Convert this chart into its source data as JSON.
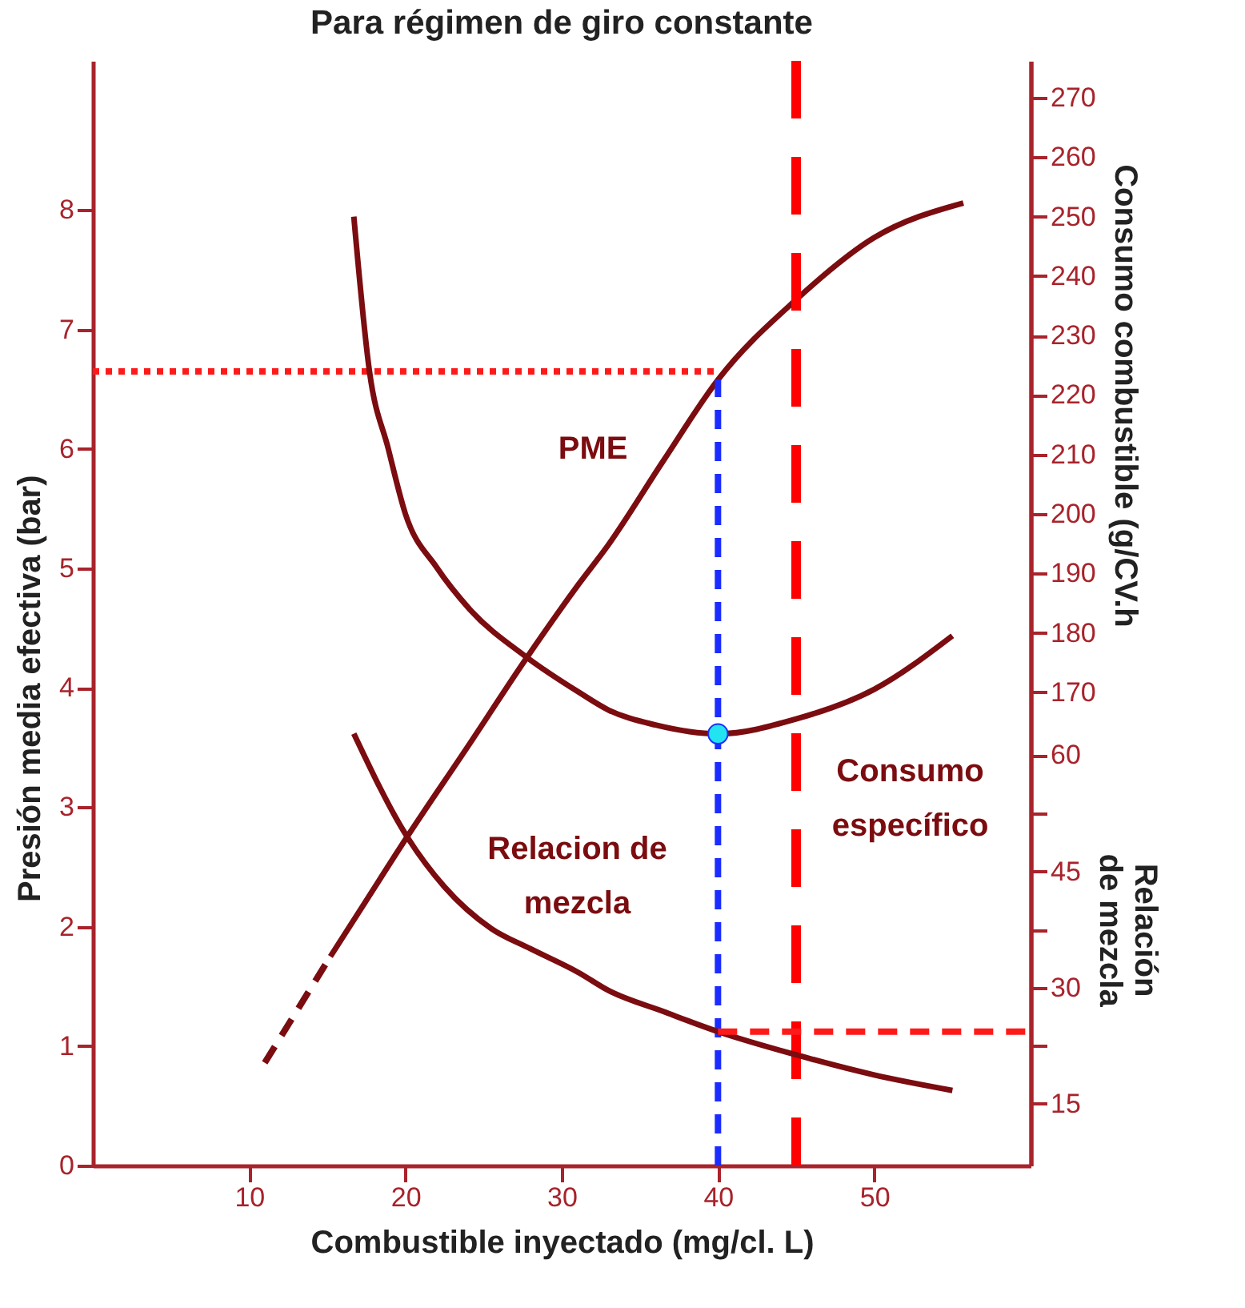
{
  "chart_data": {
    "type": "line",
    "title": "Para régimen de giro constante",
    "xlabel": "Combustible inyectado (mg/cl. L)",
    "ylabel": "Presión media efectiva (bar)",
    "y2label": "Consumo combustible (g/CV.h",
    "y3label": "Relación de mezcla",
    "xlim": [
      0,
      60
    ],
    "xticks": [
      10,
      20,
      30,
      40,
      50
    ],
    "ylim": [
      0,
      9.25
    ],
    "yticks": [
      0,
      1,
      2,
      3,
      4,
      5,
      6,
      7,
      8
    ],
    "y2lim": [
      90.4,
      276.2
    ],
    "y2ticks": [
      170,
      180,
      190,
      200,
      210,
      220,
      230,
      240,
      250,
      260,
      270
    ],
    "y3lim": [
      7,
      149.7
    ],
    "y3ticks": [
      15,
      {
        "value": 22.5,
        "label": null
      },
      30,
      {
        "value": 37.5,
        "label": null
      },
      45,
      {
        "value": 52.5,
        "label": null
      },
      60
    ],
    "series": [
      {
        "x": [
          11,
          15.2
        ],
        "values": [
          0.86,
          1.75
        ],
        "color": "#7b0c10",
        "line_style": "dashed"
      },
      {
        "name": "PME",
        "x": [
          15.2,
          17.5,
          20.1,
          24,
          27.7,
          31.1,
          33,
          36.5,
          40,
          45,
          50,
          55.7
        ],
        "values": [
          1.75,
          2.22,
          2.75,
          3.51,
          4.24,
          4.87,
          5.2,
          5.9,
          6.58,
          7.25,
          7.77,
          8.06
        ],
        "color": "#7b0c10"
      },
      {
        "name": "Consumo específico",
        "axis": "y2",
        "x": [
          16.7,
          17.7,
          18.9,
          20,
          22,
          24.1,
          27.7,
          31.1,
          33,
          36,
          40,
          45,
          50,
          55
        ],
        "values": [
          250,
          224,
          211,
          200,
          191,
          184,
          176,
          170,
          167,
          164.5,
          163,
          165.5,
          170.5,
          179.5
        ],
        "color": "#7b0c10"
      },
      {
        "name": "Relacion de mezcla",
        "axis": "y3",
        "x": [
          16.7,
          20.1,
          22.5,
          25.5,
          28,
          31.1,
          33,
          36.5,
          40,
          45,
          50,
          55
        ],
        "values": [
          62.8,
          49.5,
          43,
          37.6,
          35,
          31.9,
          29.6,
          26.9,
          24.3,
          21.3,
          18.7,
          16.7
        ],
        "color": "#7b0c10"
      },
      {
        "x": [
          0,
          40
        ],
        "values": [
          6.65,
          6.65
        ],
        "color": "#ff1a1a",
        "line_style": "dotted"
      },
      {
        "x": [
          40,
          40
        ],
        "values": [
          0,
          6.58
        ],
        "color": "#1a2cff",
        "line_style": "dashed"
      },
      {
        "axis": "y3",
        "x": [
          40,
          60
        ],
        "values": [
          24.3,
          24.3
        ],
        "color": "#ff1a1a",
        "line_style": "dashed"
      },
      {
        "type": "scatter",
        "axis": "y2",
        "x": [
          40
        ],
        "values": [
          163
        ],
        "color": "#22e4f0",
        "marker": "circle"
      }
    ],
    "ref_lines": [
      {
        "axis": "x",
        "value": 45,
        "color": "#ff0000",
        "line_style": "dashed"
      }
    ]
  }
}
